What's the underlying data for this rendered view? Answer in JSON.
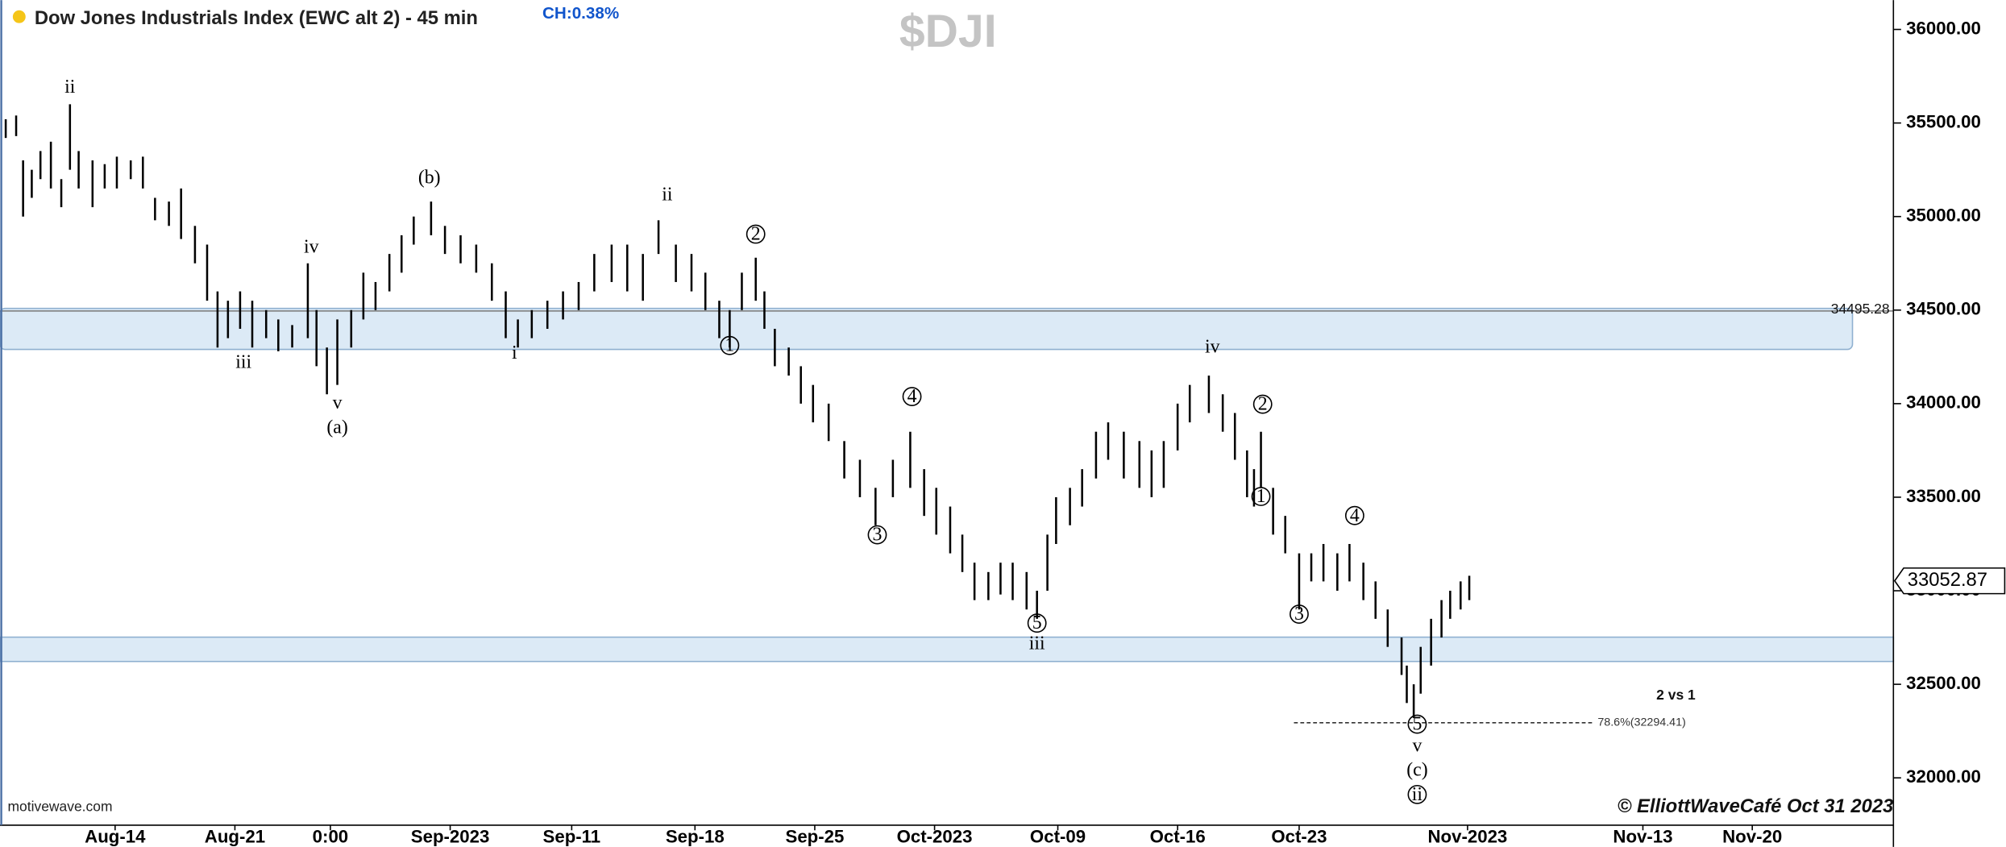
{
  "chart_data": {
    "type": "ohlc",
    "title": "Dow Jones Industrials Index (EWC alt 2) - 45 min",
    "change": "CH:0.38%",
    "symbol": "$DJI",
    "source": "motivewave.com",
    "copyright": "© ElliottWaveCafé Oct 31 2023",
    "note": "2 vs 1",
    "color": "#000000",
    "xlim": [
      -6.63,
      102.43
    ],
    "xticks": [
      {
        "value": 0,
        "label": "Aug-14"
      },
      {
        "value": 6.9,
        "label": "Aug-21"
      },
      {
        "value": 12.4,
        "label": "0:00"
      },
      {
        "value": 19.3,
        "label": "Sep-2023"
      },
      {
        "value": 26.3,
        "label": "Sep-11"
      },
      {
        "value": 33.4,
        "label": "Sep-18"
      },
      {
        "value": 40.3,
        "label": "Sep-25"
      },
      {
        "value": 47.2,
        "label": "Oct-2023"
      },
      {
        "value": 54.3,
        "label": "Oct-09"
      },
      {
        "value": 61.2,
        "label": "Oct-16"
      },
      {
        "value": 68.2,
        "label": "Oct-23"
      },
      {
        "value": 77.9,
        "label": "Nov-2023"
      },
      {
        "value": 88,
        "label": "Nov-13"
      },
      {
        "value": 94.3,
        "label": "Nov-20"
      }
    ],
    "ylim": [
      31747,
      36157
    ],
    "yticks": [
      {
        "value": 32000,
        "label": "32000.00"
      },
      {
        "value": 32500,
        "label": "32500.00"
      },
      {
        "value": 33000,
        "label": "33000.00"
      },
      {
        "value": 33500,
        "label": "33500.00"
      },
      {
        "value": 34000,
        "label": "34000.00"
      },
      {
        "value": 34500,
        "label": "34500.00"
      },
      {
        "value": 35000,
        "label": "35000.00"
      },
      {
        "value": 35500,
        "label": "35500.00"
      },
      {
        "value": 36000,
        "label": "36000.00"
      }
    ],
    "x": [
      -6.3,
      -5.7,
      -5.3,
      -4.8,
      -4.3,
      -3.7,
      -3.1,
      -2.6,
      -2.1,
      -1.3,
      -0.6,
      0.1,
      0.9,
      1.6,
      2.3,
      3.1,
      3.8,
      4.6,
      5.3,
      5.9,
      6.5,
      7.2,
      7.9,
      8.7,
      9.4,
      10.2,
      11.1,
      11.6,
      12.2,
      12.8,
      13.6,
      14.3,
      15.0,
      15.8,
      16.5,
      17.2,
      18.2,
      19.0,
      19.9,
      20.8,
      21.7,
      22.5,
      23.2,
      24.0,
      24.9,
      25.8,
      26.7,
      27.6,
      28.6,
      29.5,
      30.4,
      31.3,
      32.3,
      33.2,
      34.0,
      34.8,
      35.4,
      36.1,
      36.9,
      37.4,
      38.0,
      38.8,
      39.5,
      40.2,
      41.1,
      42.0,
      42.9,
      43.8,
      44.8,
      45.8,
      46.6,
      47.3,
      48.1,
      48.8,
      49.5,
      50.3,
      51.0,
      51.7,
      52.5,
      53.1,
      53.7,
      54.2,
      55.0,
      55.7,
      56.5,
      57.2,
      58.1,
      59.0,
      59.7,
      60.4,
      61.2,
      61.9,
      63.0,
      63.8,
      64.5,
      65.2,
      65.6,
      66.0,
      66.7,
      67.4,
      68.2,
      68.9,
      69.6,
      70.4,
      71.1,
      71.9,
      72.6,
      73.3,
      74.1,
      74.4,
      74.8,
      75.2,
      75.8,
      76.4,
      76.9,
      77.5,
      78.0
    ],
    "high": [
      35520,
      35540,
      35300,
      35250,
      35350,
      35400,
      35200,
      35600,
      35350,
      35300,
      35280,
      35320,
      35300,
      35320,
      35100,
      35080,
      35150,
      34950,
      34850,
      34600,
      34550,
      34600,
      34550,
      34500,
      34450,
      34420,
      34750,
      34500,
      34300,
      34450,
      34500,
      34700,
      34650,
      34800,
      34900,
      35000,
      35080,
      34950,
      34900,
      34850,
      34750,
      34600,
      34450,
      34500,
      34550,
      34600,
      34650,
      34800,
      34850,
      34850,
      34800,
      34980,
      34850,
      34800,
      34700,
      34550,
      34500,
      34700,
      34780,
      34600,
      34400,
      34300,
      34200,
      34100,
      34000,
      33800,
      33700,
      33550,
      33700,
      33850,
      33650,
      33550,
      33450,
      33300,
      33150,
      33100,
      33150,
      33150,
      33100,
      33000,
      33300,
      33500,
      33550,
      33650,
      33850,
      33900,
      33850,
      33800,
      33750,
      33800,
      34000,
      34100,
      34150,
      34050,
      33950,
      33750,
      33650,
      33850,
      33550,
      33400,
      33200,
      33200,
      33250,
      33200,
      33250,
      33150,
      33050,
      32900,
      32750,
      32600,
      32500,
      32700,
      32850,
      32950,
      33000,
      33050,
      33080
    ],
    "low": [
      35420,
      35430,
      35000,
      35100,
      35200,
      35150,
      35050,
      35250,
      35150,
      35050,
      35150,
      35150,
      35200,
      35150,
      34980,
      34950,
      34880,
      34750,
      34550,
      34300,
      34350,
      34400,
      34300,
      34350,
      34280,
      34300,
      34350,
      34200,
      34050,
      34100,
      34300,
      34450,
      34500,
      34600,
      34700,
      34850,
      34900,
      34800,
      34750,
      34700,
      34550,
      34350,
      34300,
      34350,
      34400,
      34450,
      34500,
      34600,
      34650,
      34600,
      34550,
      34800,
      34650,
      34600,
      34500,
      34350,
      34300,
      34500,
      34550,
      34400,
      34200,
      34150,
      34000,
      33900,
      33800,
      33600,
      33500,
      33350,
      33500,
      33550,
      33400,
      33300,
      33200,
      33100,
      32950,
      32950,
      32980,
      32950,
      32900,
      32850,
      33000,
      33250,
      33350,
      33450,
      33600,
      33700,
      33600,
      33550,
      33500,
      33550,
      33750,
      33900,
      33950,
      33850,
      33700,
      33500,
      33450,
      33550,
      33300,
      33200,
      32900,
      33050,
      33050,
      33000,
      33050,
      32950,
      32850,
      32700,
      32550,
      32400,
      32320,
      32450,
      32600,
      32750,
      32850,
      32900,
      32950
    ],
    "last_price": 33052.87,
    "level": 34495.28,
    "zones": [
      {
        "low": 34290,
        "high": 34509
      },
      {
        "low": 32622,
        "high": 32752
      }
    ],
    "fib": {
      "value": 32294.41,
      "label": "78.6%(32294.41)",
      "x": [
        67.9,
        85.1
      ]
    },
    "wave_labels": [
      {
        "text": "ii",
        "x": -2.6,
        "y": 35692,
        "circled": false
      },
      {
        "text": "iv",
        "x": 11.3,
        "y": 34838,
        "circled": false
      },
      {
        "text": "iii",
        "x": 7.4,
        "y": 34222,
        "circled": false
      },
      {
        "text": "v",
        "x": 12.8,
        "y": 34003,
        "circled": false
      },
      {
        "text": "(a)",
        "x": 12.8,
        "y": 33873,
        "circled": false
      },
      {
        "text": "(b)",
        "x": 18.1,
        "y": 35207,
        "circled": false
      },
      {
        "text": "i",
        "x": 23.0,
        "y": 34270,
        "circled": false
      },
      {
        "text": "ii",
        "x": 31.8,
        "y": 35118,
        "circled": false
      },
      {
        "text": "2",
        "x": 36.9,
        "y": 34906,
        "circled": true
      },
      {
        "text": "1",
        "x": 35.4,
        "y": 34311,
        "circled": true
      },
      {
        "text": "4",
        "x": 45.9,
        "y": 34038,
        "circled": true
      },
      {
        "text": "3",
        "x": 43.9,
        "y": 33299,
        "circled": true
      },
      {
        "text": "5",
        "x": 53.1,
        "y": 32827,
        "circled": true
      },
      {
        "text": "iii",
        "x": 53.1,
        "y": 32718,
        "circled": false
      },
      {
        "text": "iv",
        "x": 63.2,
        "y": 34304,
        "circled": false
      },
      {
        "text": "2",
        "x": 66.1,
        "y": 33997,
        "circled": true
      },
      {
        "text": "1",
        "x": 66.0,
        "y": 33504,
        "circled": true
      },
      {
        "text": "3",
        "x": 68.2,
        "y": 32875,
        "circled": true
      },
      {
        "text": "4",
        "x": 71.4,
        "y": 33402,
        "circled": true
      },
      {
        "text": "5",
        "x": 75.0,
        "y": 32287,
        "circled": true
      },
      {
        "text": "v",
        "x": 75.0,
        "y": 32171,
        "circled": false
      },
      {
        "text": "(c)",
        "x": 75.0,
        "y": 32041,
        "circled": false
      },
      {
        "text": "ii",
        "x": 75.0,
        "y": 31911,
        "circled": true
      }
    ]
  }
}
